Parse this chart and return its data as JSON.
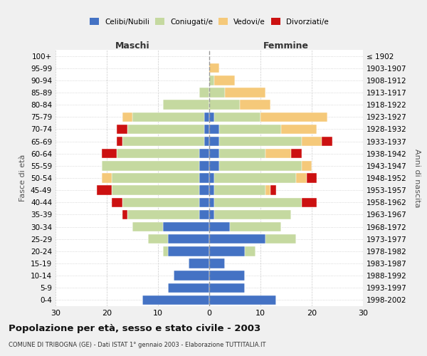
{
  "age_groups": [
    "0-4",
    "5-9",
    "10-14",
    "15-19",
    "20-24",
    "25-29",
    "30-34",
    "35-39",
    "40-44",
    "45-49",
    "50-54",
    "55-59",
    "60-64",
    "65-69",
    "70-74",
    "75-79",
    "80-84",
    "85-89",
    "90-94",
    "95-99",
    "100+"
  ],
  "birth_years": [
    "1998-2002",
    "1993-1997",
    "1988-1992",
    "1983-1987",
    "1978-1982",
    "1973-1977",
    "1968-1972",
    "1963-1967",
    "1958-1962",
    "1953-1957",
    "1948-1952",
    "1943-1947",
    "1938-1942",
    "1933-1937",
    "1928-1932",
    "1923-1927",
    "1918-1922",
    "1913-1917",
    "1908-1912",
    "1903-1907",
    "≤ 1902"
  ],
  "maschi": {
    "celibi": [
      13,
      8,
      7,
      4,
      8,
      8,
      9,
      2,
      2,
      2,
      2,
      2,
      2,
      1,
      1,
      1,
      0,
      0,
      0,
      0,
      0
    ],
    "coniugati": [
      0,
      0,
      0,
      0,
      1,
      4,
      6,
      14,
      15,
      17,
      17,
      19,
      16,
      16,
      15,
      14,
      9,
      2,
      0,
      0,
      0
    ],
    "vedovi": [
      0,
      0,
      0,
      0,
      0,
      0,
      0,
      0,
      0,
      0,
      2,
      0,
      0,
      0,
      0,
      2,
      0,
      0,
      0,
      0,
      0
    ],
    "divorziati": [
      0,
      0,
      0,
      0,
      0,
      0,
      0,
      1,
      2,
      3,
      0,
      0,
      3,
      1,
      2,
      0,
      0,
      0,
      0,
      0,
      0
    ]
  },
  "femmine": {
    "nubili": [
      13,
      7,
      7,
      3,
      7,
      11,
      4,
      1,
      1,
      1,
      1,
      2,
      2,
      2,
      2,
      1,
      0,
      0,
      0,
      0,
      0
    ],
    "coniugate": [
      0,
      0,
      0,
      0,
      2,
      6,
      10,
      15,
      17,
      10,
      16,
      16,
      9,
      16,
      12,
      9,
      6,
      3,
      1,
      0,
      0
    ],
    "vedove": [
      0,
      0,
      0,
      0,
      0,
      0,
      0,
      0,
      0,
      1,
      2,
      2,
      5,
      4,
      7,
      13,
      6,
      8,
      4,
      2,
      0
    ],
    "divorziate": [
      0,
      0,
      0,
      0,
      0,
      0,
      0,
      0,
      3,
      1,
      2,
      0,
      2,
      2,
      0,
      0,
      0,
      0,
      0,
      0,
      0
    ]
  },
  "colors": {
    "celibi": "#4472c4",
    "coniugati": "#c5d9a0",
    "vedovi": "#f5c97a",
    "divorziati": "#cc1111"
  },
  "xlim": 30,
  "title": "Popolazione per età, sesso e stato civile - 2003",
  "subtitle": "COMUNE DI TRIBOGNA (GE) - Dati ISTAT 1° gennaio 2003 - Elaborazione TUTTITALIA.IT",
  "ylabel_left": "Fasce di età",
  "ylabel_right": "Anni di nascita",
  "xlabel_left": "Maschi",
  "xlabel_right": "Femmine",
  "bg_color": "#f0f0f0",
  "plot_bg_color": "#ffffff"
}
